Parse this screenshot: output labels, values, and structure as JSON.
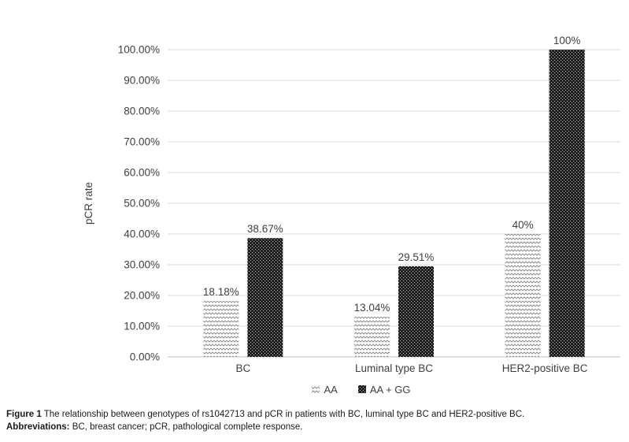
{
  "figure": {
    "caption_label": "Figure 1",
    "caption_text": " The relationship between genotypes of rs1042713 and pCR in patients with BC, luminal type BC and HER2-positive BC.",
    "abbrev_label": "Abbreviations:",
    "abbrev_text": " BC, breast cancer; pCR, pathological complete response."
  },
  "chart_data": {
    "type": "bar",
    "title": "",
    "xlabel": "",
    "ylabel": "pCR rate",
    "categories": [
      "BC",
      "Luminal type BC",
      "HER2-positive BC"
    ],
    "series": [
      {
        "name": "AA",
        "values": [
          18.18,
          13.04,
          40
        ],
        "labels": [
          "18.18%",
          "13.04%",
          "40%"
        ],
        "pattern": "zigzag-light",
        "pattern_color": "#8f8f8f"
      },
      {
        "name": "AA + GG",
        "values": [
          38.67,
          29.51,
          100
        ],
        "labels": [
          "38.67%",
          "29.51%",
          "100%"
        ],
        "pattern": "dotted-dark",
        "pattern_color": "#1f1f1f"
      }
    ],
    "ylim": [
      0,
      100
    ],
    "ytick_step": 10,
    "yticks": [
      "0.00%",
      "10.00%",
      "20.00%",
      "30.00%",
      "40.00%",
      "50.00%",
      "60.00%",
      "70.00%",
      "80.00%",
      "90.00%",
      "100.00%"
    ],
    "grid": true,
    "legend_position": "bottom",
    "colors": {
      "gridline": "#d9d9d9",
      "axis_line": "#bfbfbf",
      "text": "#404040",
      "background": "#ffffff"
    }
  }
}
